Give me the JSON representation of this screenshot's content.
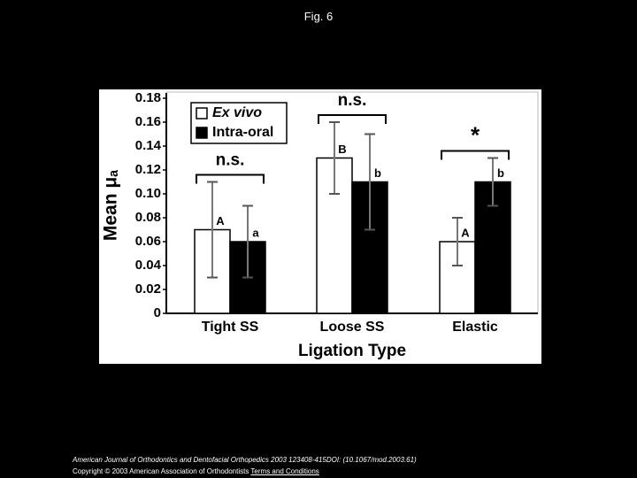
{
  "slide_title": "Fig. 6",
  "chart_data": {
    "type": "bar",
    "y_label": "Mean μₐ",
    "x_label": "Ligation Type",
    "categories": [
      "Tight SS",
      "Loose SS",
      "Elastic"
    ],
    "series": [
      {
        "name": "Ex vivo",
        "color": "#ffffff",
        "values": [
          0.07,
          0.13,
          0.06
        ],
        "errors": [
          0.04,
          0.03,
          0.02
        ],
        "letters": [
          "A",
          "B",
          "A"
        ]
      },
      {
        "name": "Intra-oral",
        "color": "#000000",
        "values": [
          0.06,
          0.11,
          0.11
        ],
        "errors": [
          0.03,
          0.04,
          0.02
        ],
        "letters": [
          "a",
          "b",
          "b"
        ]
      }
    ],
    "significance": [
      "n.s.",
      "n.s.",
      "*"
    ],
    "ylim": [
      0,
      0.18
    ],
    "yticks": [
      0,
      0.02,
      0.04,
      0.06,
      0.08,
      {
        "value": 0.1,
        "label": "0.10"
      },
      0.12,
      0.14,
      0.16,
      0.18
    ],
    "legend": "top-left"
  },
  "footer": {
    "citation": "American Journal of Orthodontics and Dentofacial Orthopedics 2003 123408-415DOI: (10.1067/mod.2003.61)",
    "copyright": "Copyright © 2003 American Association of Orthodontists",
    "link": "Terms and Conditions"
  }
}
